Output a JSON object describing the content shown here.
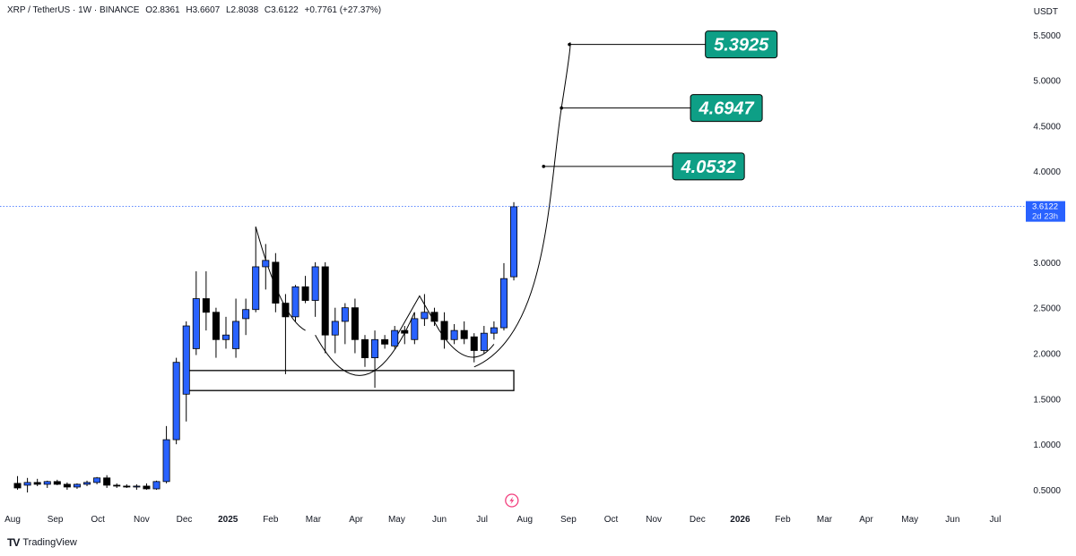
{
  "header": {
    "symbol": "XRP / TetherUS · 1W · BINANCE",
    "open": "O2.8361",
    "high": "H3.6607",
    "low": "L2.8038",
    "close": "C3.6122",
    "change": "+0.7761 (+27.37%)"
  },
  "currency": "USDT",
  "brand": {
    "name": "TradingView",
    "logo": "TV"
  },
  "colors": {
    "up": "#2962ff",
    "down": "#000000",
    "target_fill": "#0e9f86",
    "price_line": "#2962ff",
    "axis_text": "#131722"
  },
  "chart_data": {
    "type": "candlestick",
    "title": "",
    "price_axis": {
      "ticks": [
        5.5,
        5.0,
        4.5,
        4.0,
        3.5,
        3.0,
        2.5,
        2.0,
        1.5,
        1.0,
        0.5
      ],
      "tick_labels": [
        "5.5000",
        "5.0000",
        "4.5000",
        "4.0000",
        "",
        "3.0000",
        "2.5000",
        "2.0000",
        "1.5000",
        "1.0000",
        "0.5000"
      ],
      "range": [
        0.2,
        5.9
      ]
    },
    "time_axis": {
      "labels": [
        "Aug",
        "Sep",
        "Oct",
        "Nov",
        "Dec",
        "2025",
        "Feb",
        "Mar",
        "Apr",
        "May",
        "Jun",
        "Jul",
        "Aug",
        "Sep",
        "Oct",
        "Nov",
        "Dec",
        "2026",
        "Feb",
        "Mar",
        "Apr",
        "May",
        "Jun",
        "Jul"
      ],
      "bold": [
        "2025",
        "2026"
      ],
      "label_weeks": [
        0,
        4.3,
        8.6,
        13,
        17.3,
        21.7,
        26,
        30.3,
        34.6,
        38.7,
        43,
        47.3,
        51.6,
        56,
        60.3,
        64.6,
        69,
        73.3,
        77.6,
        81.8,
        86,
        90.4,
        94.7,
        99
      ]
    },
    "current_price": {
      "value": 3.6122,
      "label": "3.6122",
      "countdown": "2d 23h"
    },
    "candles": [
      {
        "o": 0.57,
        "h": 0.65,
        "l": 0.5,
        "c": 0.52
      },
      {
        "o": 0.55,
        "h": 0.63,
        "l": 0.47,
        "c": 0.58
      },
      {
        "o": 0.58,
        "h": 0.62,
        "l": 0.54,
        "c": 0.56
      },
      {
        "o": 0.56,
        "h": 0.6,
        "l": 0.52,
        "c": 0.59
      },
      {
        "o": 0.59,
        "h": 0.61,
        "l": 0.55,
        "c": 0.56
      },
      {
        "o": 0.56,
        "h": 0.58,
        "l": 0.5,
        "c": 0.53
      },
      {
        "o": 0.53,
        "h": 0.57,
        "l": 0.51,
        "c": 0.56
      },
      {
        "o": 0.56,
        "h": 0.6,
        "l": 0.54,
        "c": 0.58
      },
      {
        "o": 0.58,
        "h": 0.64,
        "l": 0.56,
        "c": 0.63
      },
      {
        "o": 0.63,
        "h": 0.66,
        "l": 0.52,
        "c": 0.55
      },
      {
        "o": 0.55,
        "h": 0.57,
        "l": 0.52,
        "c": 0.54
      },
      {
        "o": 0.54,
        "h": 0.56,
        "l": 0.52,
        "c": 0.53
      },
      {
        "o": 0.53,
        "h": 0.56,
        "l": 0.5,
        "c": 0.54
      },
      {
        "o": 0.54,
        "h": 0.57,
        "l": 0.5,
        "c": 0.51
      },
      {
        "o": 0.51,
        "h": 0.6,
        "l": 0.5,
        "c": 0.59
      },
      {
        "o": 0.59,
        "h": 1.2,
        "l": 0.57,
        "c": 1.05
      },
      {
        "o": 1.05,
        "h": 1.95,
        "l": 1.0,
        "c": 1.9
      },
      {
        "o": 1.55,
        "h": 2.35,
        "l": 1.25,
        "c": 2.3
      },
      {
        "o": 2.05,
        "h": 2.9,
        "l": 1.98,
        "c": 2.6
      },
      {
        "o": 2.6,
        "h": 2.9,
        "l": 2.25,
        "c": 2.45
      },
      {
        "o": 2.45,
        "h": 2.5,
        "l": 1.95,
        "c": 2.15
      },
      {
        "o": 2.15,
        "h": 2.4,
        "l": 2.05,
        "c": 2.2
      },
      {
        "o": 2.05,
        "h": 2.6,
        "l": 1.95,
        "c": 2.35
      },
      {
        "o": 2.38,
        "h": 2.6,
        "l": 2.2,
        "c": 2.48
      },
      {
        "o": 2.48,
        "h": 3.39,
        "l": 2.45,
        "c": 2.95
      },
      {
        "o": 2.95,
        "h": 3.2,
        "l": 2.7,
        "c": 3.02
      },
      {
        "o": 3.0,
        "h": 3.1,
        "l": 2.45,
        "c": 2.55
      },
      {
        "o": 2.55,
        "h": 2.65,
        "l": 1.77,
        "c": 2.4
      },
      {
        "o": 2.4,
        "h": 2.75,
        "l": 2.35,
        "c": 2.73
      },
      {
        "o": 2.73,
        "h": 2.85,
        "l": 2.55,
        "c": 2.58
      },
      {
        "o": 2.58,
        "h": 3.0,
        "l": 2.4,
        "c": 2.95
      },
      {
        "o": 2.95,
        "h": 3.0,
        "l": 2.0,
        "c": 2.2
      },
      {
        "o": 2.2,
        "h": 2.5,
        "l": 2.0,
        "c": 2.35
      },
      {
        "o": 2.35,
        "h": 2.55,
        "l": 2.1,
        "c": 2.5
      },
      {
        "o": 2.5,
        "h": 2.6,
        "l": 2.0,
        "c": 2.15
      },
      {
        "o": 2.15,
        "h": 2.2,
        "l": 1.85,
        "c": 1.95
      },
      {
        "o": 1.95,
        "h": 2.25,
        "l": 1.62,
        "c": 2.15
      },
      {
        "o": 2.15,
        "h": 2.2,
        "l": 2.05,
        "c": 2.1
      },
      {
        "o": 2.08,
        "h": 2.3,
        "l": 2.05,
        "c": 2.25
      },
      {
        "o": 2.25,
        "h": 2.3,
        "l": 2.1,
        "c": 2.22
      },
      {
        "o": 2.15,
        "h": 2.45,
        "l": 2.1,
        "c": 2.38
      },
      {
        "o": 2.38,
        "h": 2.65,
        "l": 2.3,
        "c": 2.45
      },
      {
        "o": 2.45,
        "h": 2.5,
        "l": 2.3,
        "c": 2.35
      },
      {
        "o": 2.35,
        "h": 2.45,
        "l": 2.05,
        "c": 2.15
      },
      {
        "o": 2.15,
        "h": 2.32,
        "l": 2.1,
        "c": 2.25
      },
      {
        "o": 2.25,
        "h": 2.35,
        "l": 2.1,
        "c": 2.16
      },
      {
        "o": 2.18,
        "h": 2.22,
        "l": 1.9,
        "c": 2.03
      },
      {
        "o": 2.03,
        "h": 2.3,
        "l": 2.0,
        "c": 2.22
      },
      {
        "o": 2.22,
        "h": 2.35,
        "l": 2.15,
        "c": 2.28
      },
      {
        "o": 2.28,
        "h": 2.99,
        "l": 2.25,
        "c": 2.82
      },
      {
        "o": 2.84,
        "h": 3.66,
        "l": 2.8,
        "c": 3.61
      }
    ],
    "support_zone": {
      "week_start": 17.5,
      "week_end": 50.5,
      "high": 1.81,
      "low": 1.59
    },
    "projection_targets": [
      {
        "value": 4.0532,
        "label": "4.0532",
        "week": 53.5,
        "label_week": 66.5
      },
      {
        "value": 4.6947,
        "label": "4.6947",
        "week": 55.3,
        "label_week": 68.3
      },
      {
        "value": 5.3925,
        "label": "5.3925",
        "week": 56.1,
        "label_week": 69.8
      }
    ]
  }
}
